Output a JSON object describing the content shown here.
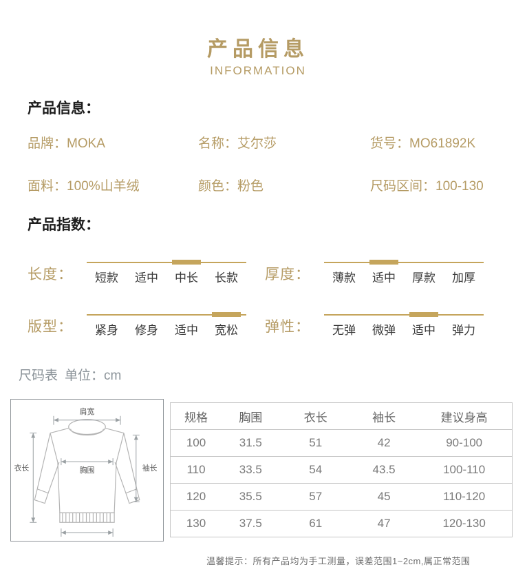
{
  "header": {
    "title": "产品信息",
    "subtitle": "INFORMATION"
  },
  "info_section": {
    "heading": "产品信息：",
    "fields": [
      {
        "label": "品牌：",
        "value": "MOKA"
      },
      {
        "label": "名称：",
        "value": "艾尔莎"
      },
      {
        "label": "货号：",
        "value": "MO61892K"
      },
      {
        "label": "面料：",
        "value": "100%山羊绒"
      },
      {
        "label": "颜色：",
        "value": "粉色"
      },
      {
        "label": "尺码区间：",
        "value": "100-130"
      }
    ]
  },
  "index_section": {
    "heading": "产品指数：",
    "metrics": [
      {
        "label": "长度：",
        "options": [
          "短款",
          "适中",
          "中长",
          "长款"
        ],
        "active_index": 2,
        "active_option": "中长"
      },
      {
        "label": "厚度：",
        "options": [
          "薄款",
          "适中",
          "厚款",
          "加厚"
        ],
        "active_index": 1,
        "active_option": "适中"
      },
      {
        "label": "版型：",
        "options": [
          "紧身",
          "修身",
          "适中",
          "宽松"
        ],
        "active_index": 3,
        "active_option": "宽松"
      },
      {
        "label": "弹性：",
        "options": [
          "无弹",
          "微弹",
          "适中",
          "弹力"
        ],
        "active_index": 2,
        "active_option": "适中"
      }
    ]
  },
  "size_section": {
    "heading": "尺码表",
    "unit_label": "单位：cm",
    "diagram_labels": {
      "shoulder": "肩宽",
      "length": "衣长",
      "chest": "胸围",
      "sleeve": "袖长"
    },
    "table": {
      "columns": [
        "规格",
        "胸围",
        "衣长",
        "袖长",
        "建议身高"
      ],
      "rows": [
        [
          "100",
          "31.5",
          "51",
          "42",
          "90-100"
        ],
        [
          "110",
          "33.5",
          "54",
          "43.5",
          "100-110"
        ],
        [
          "120",
          "35.5",
          "57",
          "45",
          "110-120"
        ],
        [
          "130",
          "37.5",
          "61",
          "47",
          "120-130"
        ]
      ]
    },
    "note": "温馨提示：所有产品均为手工测量，误差范围1~2cm,属正常范围"
  },
  "colors": {
    "gold_text": "#b59b64",
    "gold_bar": "#c5a55c",
    "table_text": "#7a7a7a",
    "gray_heading": "#8b9399"
  }
}
